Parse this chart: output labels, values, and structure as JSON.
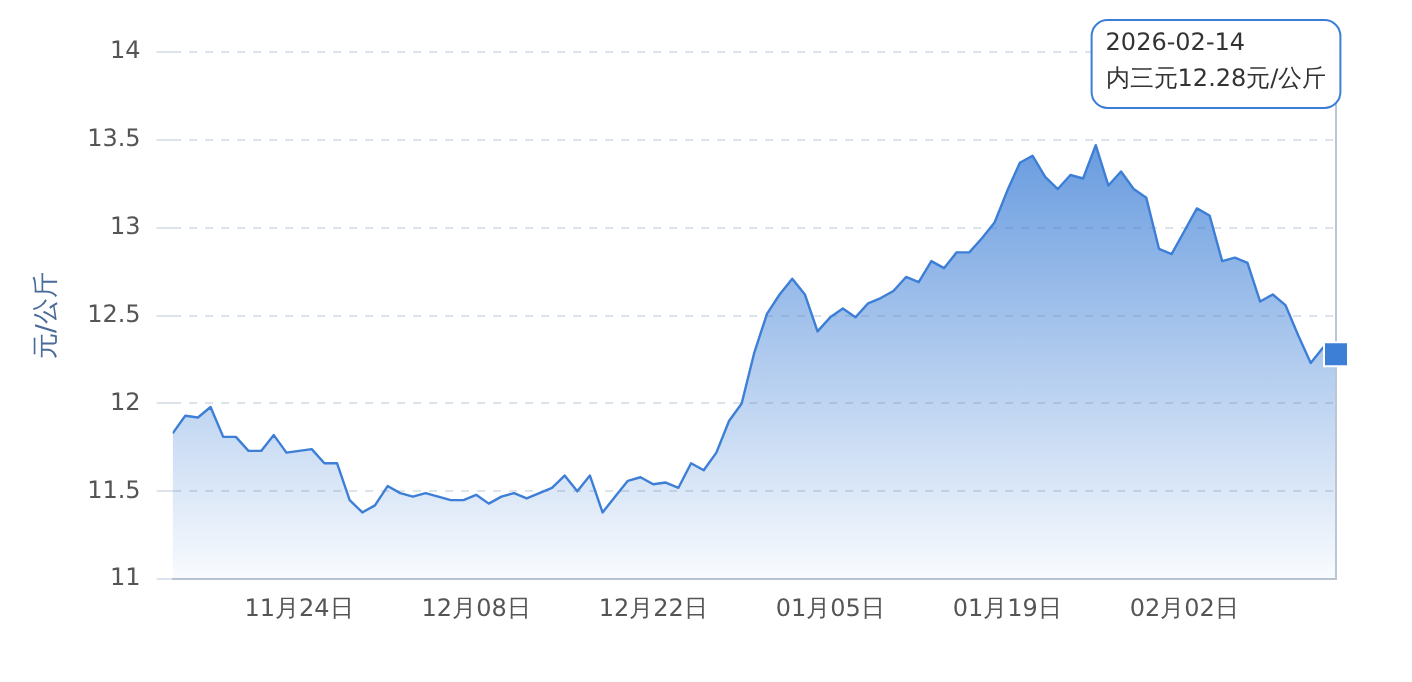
{
  "chart_data": {
    "type": "area",
    "ylabel": "元/公斤",
    "x": [
      "2025-11-14",
      "2025-11-15",
      "2025-11-16",
      "2025-11-17",
      "2025-11-18",
      "2025-11-19",
      "2025-11-20",
      "2025-11-21",
      "2025-11-22",
      "2025-11-23",
      "2025-11-24",
      "2025-11-25",
      "2025-11-26",
      "2025-11-27",
      "2025-11-28",
      "2025-11-29",
      "2025-11-30",
      "2025-12-01",
      "2025-12-02",
      "2025-12-03",
      "2025-12-04",
      "2025-12-05",
      "2025-12-06",
      "2025-12-07",
      "2025-12-08",
      "2025-12-09",
      "2025-12-10",
      "2025-12-11",
      "2025-12-12",
      "2025-12-13",
      "2025-12-14",
      "2025-12-15",
      "2025-12-16",
      "2025-12-17",
      "2025-12-18",
      "2025-12-19",
      "2025-12-20",
      "2025-12-21",
      "2025-12-22",
      "2025-12-23",
      "2025-12-24",
      "2025-12-25",
      "2025-12-26",
      "2025-12-27",
      "2025-12-28",
      "2025-12-29",
      "2025-12-30",
      "2025-12-31",
      "2026-01-01",
      "2026-01-02",
      "2026-01-03",
      "2026-01-04",
      "2026-01-05",
      "2026-01-06",
      "2026-01-07",
      "2026-01-08",
      "2026-01-09",
      "2026-01-10",
      "2026-01-11",
      "2026-01-12",
      "2026-01-13",
      "2026-01-14",
      "2026-01-15",
      "2026-01-16",
      "2026-01-17",
      "2026-01-18",
      "2026-01-19",
      "2026-01-20",
      "2026-01-21",
      "2026-01-22",
      "2026-01-23",
      "2026-01-24",
      "2026-01-25",
      "2026-01-26",
      "2026-01-27",
      "2026-01-28",
      "2026-01-29",
      "2026-01-30",
      "2026-01-31",
      "2026-02-01",
      "2026-02-02",
      "2026-02-03",
      "2026-02-04",
      "2026-02-05",
      "2026-02-06",
      "2026-02-07",
      "2026-02-08",
      "2026-02-09",
      "2026-02-10",
      "2026-02-11",
      "2026-02-12",
      "2026-02-13",
      "2026-02-14"
    ],
    "series": [
      {
        "color": "#3d7fd6",
        "values": [
          11.83,
          11.93,
          11.92,
          11.98,
          11.81,
          11.81,
          11.73,
          11.73,
          11.82,
          11.72,
          11.73,
          11.74,
          11.66,
          11.66,
          11.45,
          11.38,
          11.42,
          11.53,
          11.49,
          11.47,
          11.49,
          11.47,
          11.45,
          11.45,
          11.48,
          11.43,
          11.47,
          11.49,
          11.46,
          11.49,
          11.52,
          11.59,
          11.5,
          11.59,
          11.38,
          11.47,
          11.56,
          11.58,
          11.54,
          11.55,
          11.52,
          11.66,
          11.62,
          11.72,
          11.9,
          12.0,
          12.29,
          12.51,
          12.62,
          12.71,
          12.62,
          12.41,
          12.49,
          12.54,
          12.49,
          12.57,
          12.6,
          12.64,
          12.72,
          12.69,
          12.81,
          12.77,
          12.86,
          12.86,
          12.94,
          13.03,
          13.21,
          13.37,
          13.41,
          13.29,
          13.22,
          13.3,
          13.28,
          13.47,
          13.24,
          13.32,
          13.22,
          13.17,
          12.88,
          12.85,
          12.98,
          13.11,
          13.07,
          12.81,
          12.83,
          12.8,
          12.58,
          12.62,
          12.56,
          12.39,
          12.23,
          12.32,
          12.28
        ]
      }
    ],
    "xlim": [
      "2025-11-14",
      "2026-02-14"
    ],
    "xticks": [
      {
        "value": "2025-11-24",
        "label": "11月24日"
      },
      {
        "value": "2025-12-08",
        "label": "12月08日"
      },
      {
        "value": "2025-12-22",
        "label": "12月22日"
      },
      {
        "value": "2026-01-05",
        "label": "01月05日"
      },
      {
        "value": "2026-01-19",
        "label": "01月19日"
      },
      {
        "value": "2026-02-02",
        "label": "02月02日"
      }
    ],
    "ylim": [
      11,
      14
    ],
    "yticks": [
      11,
      11.5,
      12,
      12.5,
      13,
      13.5,
      14
    ],
    "grid": "y",
    "marker": "none",
    "line_style": "solid",
    "annotations": [
      "2026-02-14\n内三元12.28元/公斤"
    ]
  }
}
